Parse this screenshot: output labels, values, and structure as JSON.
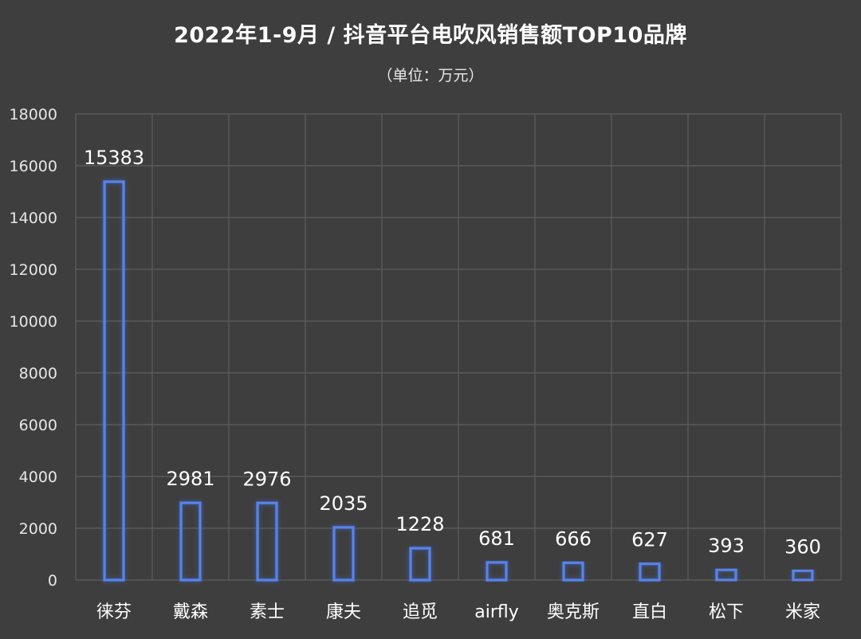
{
  "chart_data": {
    "type": "bar",
    "title": "2022年1-9月 / 抖音平台电吹风销售额TOP10品牌",
    "subtitle": "（单位：万元）",
    "xlabel": "",
    "ylabel": "",
    "categories": [
      "徕芬",
      "戴森",
      "素士",
      "康夫",
      "追觅",
      "airfly",
      "奥克斯",
      "直白",
      "松下",
      "米家"
    ],
    "values": [
      15383,
      2981,
      2976,
      2035,
      1228,
      681,
      666,
      627,
      393,
      360
    ],
    "ylim": [
      0,
      18000
    ],
    "yticks": [
      0,
      2000,
      4000,
      6000,
      8000,
      10000,
      12000,
      14000,
      16000,
      18000
    ],
    "grid": true,
    "legend": "none",
    "colors": {
      "background": "#3e3e3e",
      "bar_stroke": "#5a83e6",
      "bar_glow": "#3f6fe0",
      "grid": "#5e5e5e",
      "text": "#ffffff",
      "tick_text": "#e6e6e6"
    }
  }
}
